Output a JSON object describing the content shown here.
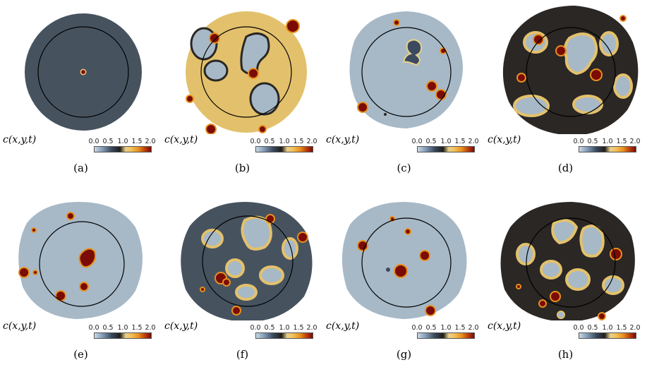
{
  "colorbar": {
    "ticks": [
      "0.0",
      "0.5",
      "1.0",
      "1.5",
      "2.0"
    ]
  },
  "panels": [
    {
      "label": "(a)",
      "field_label": "c(x,y,t)"
    },
    {
      "label": "(b)",
      "field_label": "c(x,y,t)"
    },
    {
      "label": "(c)",
      "field_label": "c(x,y,t)"
    },
    {
      "label": "(d)",
      "field_label": "c(x,y,t)"
    },
    {
      "label": "(e)",
      "field_label": "c(x,y,t)"
    },
    {
      "label": "(f)",
      "field_label": "c(x,y,t)"
    },
    {
      "label": "(g)",
      "field_label": "c(x,y,t)"
    },
    {
      "label": "(h)",
      "field_label": "c(x,y,t)"
    }
  ],
  "colors": {
    "low": "#7f97b2",
    "mid": "#1f1d1b",
    "yellow": "#f2c15a",
    "high": "#7a0c05",
    "base_a": "#46535f",
    "base_light": "#a7b9c7",
    "base_dark": "#2a2725",
    "base_sand": "#e3c16c"
  }
}
